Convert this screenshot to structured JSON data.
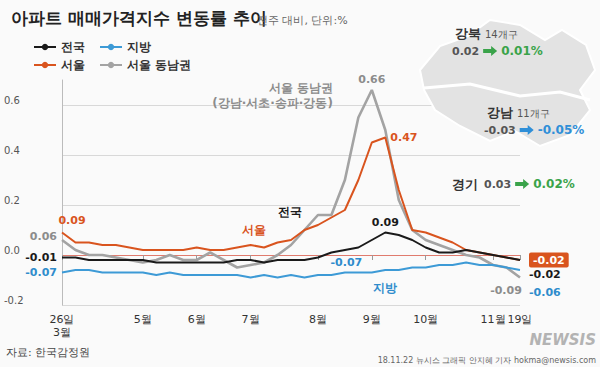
{
  "chart_data": {
    "type": "line",
    "title": "아파트 매매가격지수 변동률 추이",
    "subtitle": "전주 대비, 단위:%",
    "categories": [
      "26일\n3월",
      null,
      null,
      null,
      null,
      null,
      "5월",
      null,
      null,
      null,
      "6월",
      null,
      null,
      null,
      "7월",
      null,
      null,
      null,
      null,
      "8월",
      null,
      null,
      null,
      "9월",
      null,
      null,
      null,
      "10월",
      null,
      null,
      null,
      null,
      "11월",
      null,
      "19일"
    ],
    "series": [
      {
        "name": "전국",
        "color": "#1a1a1a",
        "values": [
          -0.01,
          -0.01,
          -0.02,
          -0.02,
          -0.02,
          -0.02,
          -0.02,
          -0.03,
          -0.03,
          -0.03,
          -0.03,
          -0.03,
          -0.03,
          -0.02,
          -0.02,
          -0.03,
          -0.02,
          -0.02,
          -0.02,
          -0.01,
          0.01,
          0.02,
          0.03,
          0.06,
          0.09,
          0.08,
          0.06,
          0.03,
          0.01,
          0.01,
          0.02,
          0.01,
          0.0,
          -0.01,
          -0.02
        ]
      },
      {
        "name": "지방",
        "color": "#3d9ad6",
        "values": [
          -0.07,
          -0.06,
          -0.06,
          -0.07,
          -0.07,
          -0.07,
          -0.07,
          -0.08,
          -0.07,
          -0.08,
          -0.08,
          -0.08,
          -0.08,
          -0.08,
          -0.09,
          -0.08,
          -0.09,
          -0.08,
          -0.09,
          -0.08,
          -0.08,
          -0.07,
          -0.07,
          -0.07,
          -0.06,
          -0.06,
          -0.05,
          -0.05,
          -0.04,
          -0.04,
          -0.03,
          -0.04,
          -0.04,
          -0.05,
          -0.06
        ]
      },
      {
        "name": "서울",
        "color": "#d9541e",
        "values": [
          0.09,
          0.05,
          0.05,
          0.04,
          0.04,
          0.03,
          0.02,
          0.02,
          0.02,
          0.02,
          0.03,
          0.02,
          0.02,
          0.03,
          0.04,
          0.03,
          0.05,
          0.06,
          0.1,
          0.12,
          0.15,
          0.18,
          0.3,
          0.45,
          0.47,
          0.26,
          0.1,
          0.09,
          0.07,
          0.05,
          0.02,
          0.01,
          0.0,
          -0.01,
          -0.02
        ]
      },
      {
        "name": "서울 동남권",
        "color": "#a3a3a3",
        "values": [
          0.06,
          0.02,
          0.0,
          0.0,
          -0.01,
          -0.02,
          -0.03,
          -0.02,
          0.0,
          -0.02,
          -0.02,
          0.01,
          -0.02,
          -0.05,
          -0.04,
          -0.03,
          0.0,
          0.04,
          0.1,
          0.16,
          0.16,
          0.3,
          0.55,
          0.66,
          0.5,
          0.22,
          0.1,
          0.06,
          0.04,
          0.02,
          0.0,
          -0.01,
          -0.04,
          -0.05,
          -0.09
        ]
      }
    ],
    "ylim": [
      -0.2,
      0.7
    ],
    "yticks": [
      -0.2,
      {
        "value": 0,
        "label": "0.0"
      },
      0.2,
      0.4,
      0.6
    ],
    "grid": true,
    "legend": "top-left",
    "annotations": [
      {
        "series": "전국",
        "index": 0,
        "text": "-0.01"
      },
      {
        "series": "전국",
        "index": 24,
        "text": "0.09"
      },
      {
        "series": "전국",
        "index": 34,
        "text": "-0.02"
      },
      {
        "series": "지방",
        "index": 0,
        "text": "-0.07"
      },
      {
        "series": "지방",
        "index": 22,
        "text": "-0.07"
      },
      {
        "series": "지방",
        "index": 34,
        "text": "-0.06"
      },
      {
        "series": "서울",
        "index": 0,
        "text": "0.09"
      },
      {
        "series": "서울",
        "index": 24,
        "text": "0.47"
      },
      {
        "series": "서울",
        "index": 34,
        "text": "-0.02"
      },
      {
        "series": "서울 동남권",
        "index": 0,
        "text": "0.06"
      },
      {
        "series": "서울 동남권",
        "index": 23,
        "text": "0.66"
      },
      {
        "series": "서울 동남권",
        "index": 34,
        "text": "-0.09"
      }
    ],
    "callouts": [
      {
        "series": "전국",
        "index": 18,
        "text": "전국"
      },
      {
        "series": "지방",
        "index": 24,
        "text": "지방"
      },
      {
        "series": "서울",
        "index": 15,
        "text": "서울"
      },
      {
        "series": "서울 동남권",
        "index": 21,
        "text": "서울 동남권\n(강남·서초·송파·강동)"
      }
    ],
    "inset": [
      {
        "name": "강북",
        "sub": "14개구",
        "before": "0.02",
        "after": "0.01%"
      },
      {
        "name": "강남",
        "sub": "11개구",
        "before": "-0.03",
        "after": "-0.05%"
      },
      {
        "name": "경기",
        "before": "0.03",
        "after": "0.02%"
      }
    ],
    "source": "자료: 한국감정원",
    "logo": "NEWSIS",
    "credit": "18.11.22 뉴시스 그래픽 안지혜 기자 hokma@newsis.com"
  }
}
